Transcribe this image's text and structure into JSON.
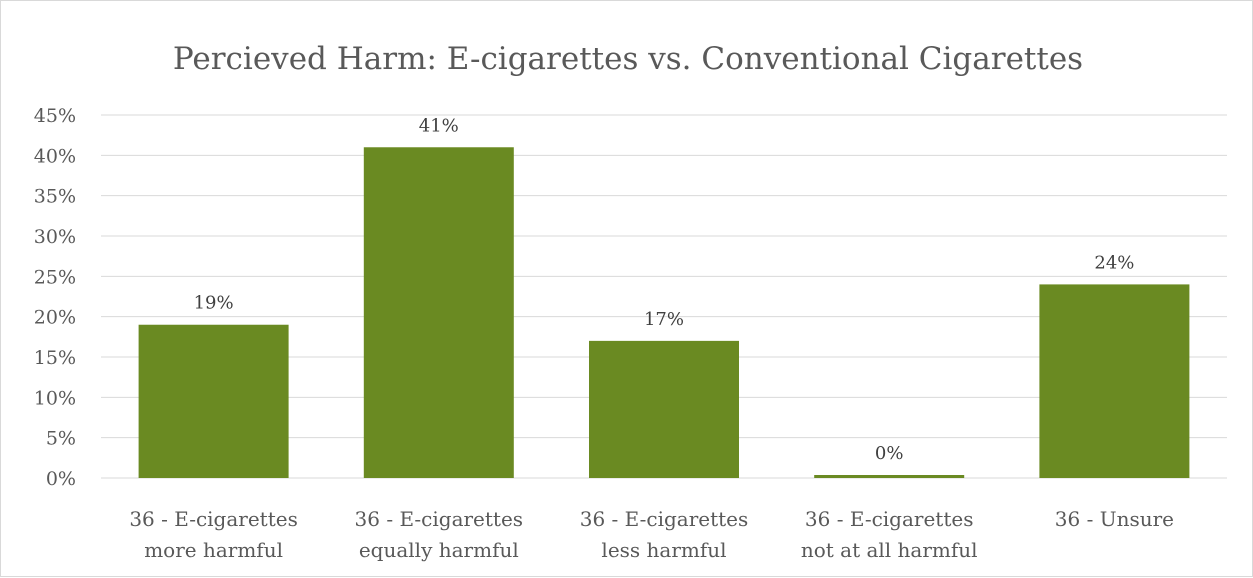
{
  "chart_data": {
    "type": "bar",
    "title": "Percieved Harm: E-cigarettes vs. Conventional Cigarettes",
    "categories": [
      [
        "36 - E-cigarettes",
        "more harmful"
      ],
      [
        "36 - E-cigarettes",
        "equally harmful"
      ],
      [
        "36 - E-cigarettes",
        "less harmful"
      ],
      [
        "36 - E-cigarettes",
        "not at all harmful"
      ],
      [
        "36 - Unsure"
      ]
    ],
    "values": [
      19,
      41,
      17,
      0,
      24
    ],
    "data_labels": [
      "19%",
      "41%",
      "17%",
      "0%",
      "24%"
    ],
    "y_ticks": [
      0,
      5,
      10,
      15,
      20,
      25,
      30,
      35,
      40,
      45
    ],
    "y_tick_labels": [
      "0%",
      "5%",
      "10%",
      "15%",
      "20%",
      "25%",
      "30%",
      "35%",
      "40%",
      "45%"
    ],
    "ylim": [
      0,
      45
    ],
    "bar_color": "#6a8a22",
    "grid": true,
    "legend": "none"
  }
}
